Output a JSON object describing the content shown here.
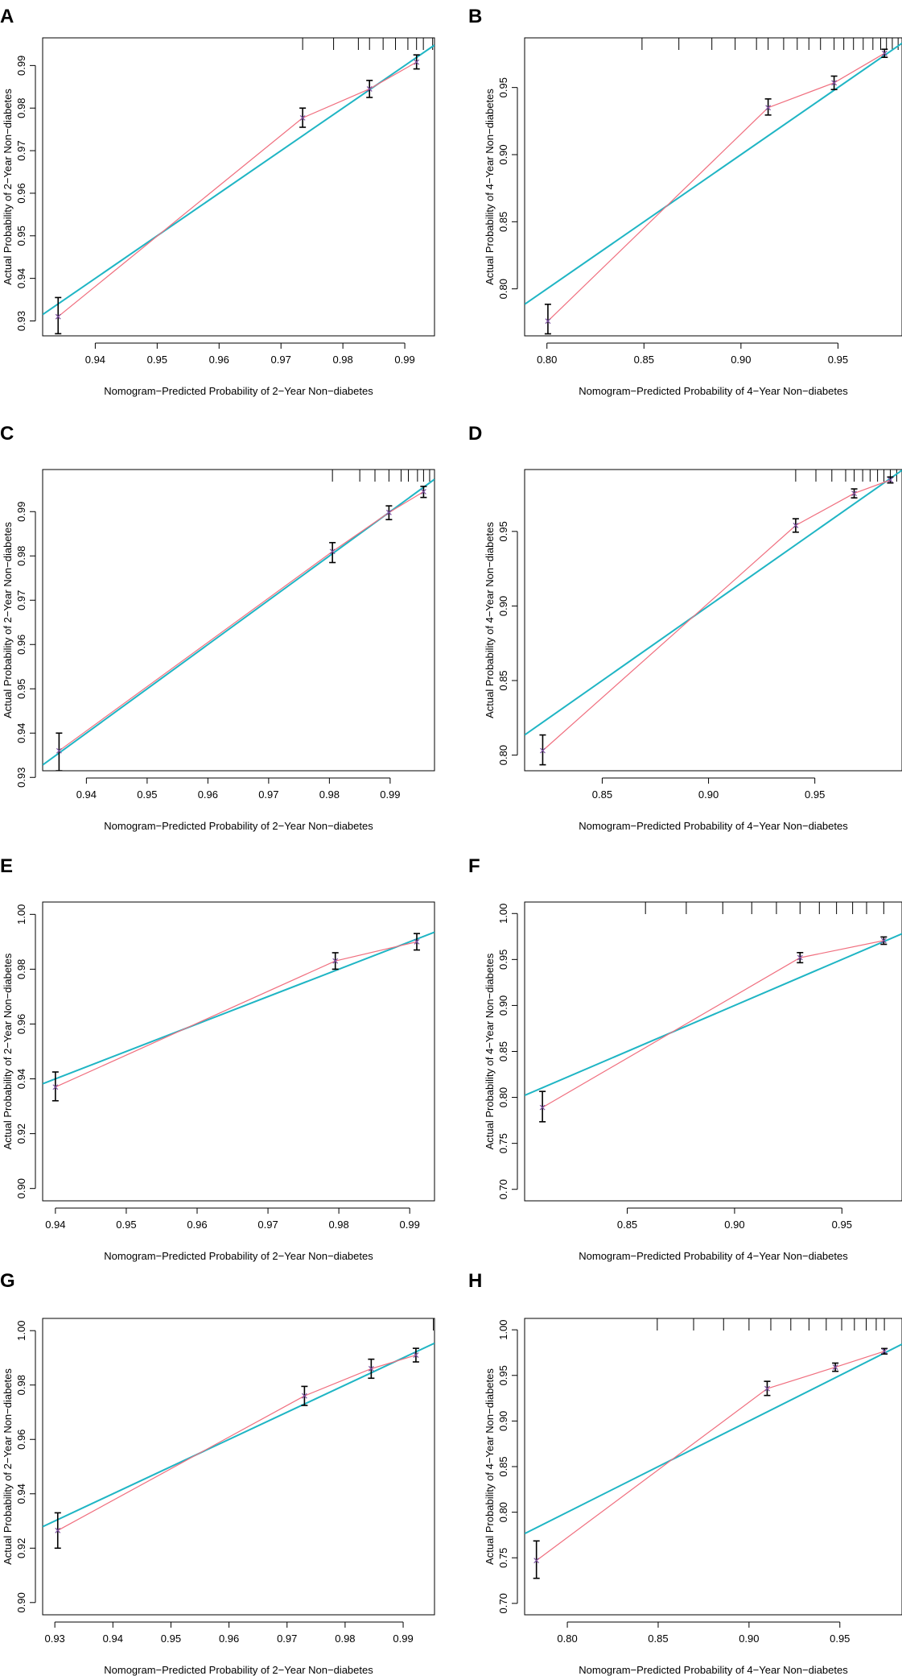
{
  "figure": {
    "colors": {
      "ideal_line": "#1fb5c4",
      "apparent_line": "#f06f7f",
      "point_marker": "#7a4fa0",
      "error_bar": "#000000",
      "axes": "#000000"
    }
  },
  "chart_data": [
    {
      "panel": "A",
      "type": "line",
      "xlabel": "Nomogram−Predicted Probability of 2−Year Non−diabetes",
      "ylabel": "Actual Probability of 2−Year Non−diabetes",
      "xlim": [
        0.9315,
        0.9948
      ],
      "ylim": [
        0.9265,
        0.9965
      ],
      "xticks": [
        0.94,
        0.95,
        0.96,
        0.97,
        0.98,
        0.99
      ],
      "xtick_labels": [
        "0.94",
        "0.95",
        "0.96",
        "0.97",
        "0.98",
        "0.99"
      ],
      "yticks": [
        0.93,
        0.94,
        0.95,
        0.96,
        0.97,
        0.98,
        0.99
      ],
      "ytick_labels": [
        "0.93",
        "0.94",
        "0.95",
        "0.96",
        "0.97",
        "0.98",
        "0.99"
      ],
      "ideal_line": [
        [
          0.9315,
          0.9315
        ],
        [
          0.9948,
          0.9948
        ]
      ],
      "points": [
        {
          "x": 0.934,
          "y": 0.931,
          "lo": 0.927,
          "hi": 0.9355
        },
        {
          "x": 0.9735,
          "y": 0.9777,
          "lo": 0.9755,
          "hi": 0.98
        },
        {
          "x": 0.9843,
          "y": 0.9845,
          "lo": 0.9825,
          "hi": 0.9865
        },
        {
          "x": 0.9919,
          "y": 0.9908,
          "lo": 0.9892,
          "hi": 0.9925
        }
      ],
      "rug": [
        0.9735,
        0.9785,
        0.9825,
        0.9843,
        0.9865,
        0.9885,
        0.9905,
        0.9919,
        0.993,
        0.9945
      ]
    },
    {
      "panel": "B",
      "type": "line",
      "xlabel": "Nomogram−Predicted Probability of 4−Year Non−diabetes",
      "ylabel": "Actual Probability of 4−Year Non−diabetes",
      "xlim": [
        0.7885,
        0.983
      ],
      "ylim": [
        0.765,
        0.987
      ],
      "xticks": [
        0.8,
        0.85,
        0.9,
        0.95
      ],
      "xtick_labels": [
        "0.80",
        "0.85",
        "0.90",
        "0.95"
      ],
      "yticks": [
        0.8,
        0.85,
        0.9,
        0.95
      ],
      "ytick_labels": [
        "0.80",
        "0.85",
        "0.90",
        "0.95"
      ],
      "ideal_line": [
        [
          0.7885,
          0.7885
        ],
        [
          0.983,
          0.983
        ]
      ],
      "points": [
        {
          "x": 0.8005,
          "y": 0.776,
          "lo": 0.7665,
          "hi": 0.7885
        },
        {
          "x": 0.914,
          "y": 0.935,
          "lo": 0.9295,
          "hi": 0.9415
        },
        {
          "x": 0.948,
          "y": 0.9535,
          "lo": 0.9485,
          "hi": 0.9585
        },
        {
          "x": 0.974,
          "y": 0.9755,
          "lo": 0.9725,
          "hi": 0.9785
        }
      ],
      "rug": [
        0.849,
        0.868,
        0.885,
        0.897,
        0.908,
        0.914,
        0.922,
        0.929,
        0.935,
        0.941,
        0.948,
        0.953,
        0.958,
        0.963,
        0.968,
        0.972,
        0.975,
        0.978,
        0.981
      ]
    },
    {
      "panel": "C",
      "type": "line",
      "xlabel": "Nomogram−Predicted Probability of 2−Year Non−diabetes",
      "ylabel": "Actual Probability of 2−Year Non−diabetes",
      "xlim": [
        0.9328,
        0.9973
      ],
      "ylim": [
        0.9315,
        0.9995
      ],
      "xticks": [
        0.94,
        0.95,
        0.96,
        0.97,
        0.98,
        0.99
      ],
      "xtick_labels": [
        "0.94",
        "0.95",
        "0.96",
        "0.97",
        "0.98",
        "0.99"
      ],
      "yticks": [
        0.93,
        0.94,
        0.95,
        0.96,
        0.97,
        0.98,
        0.99
      ],
      "ytick_labels": [
        "0.93",
        "0.94",
        "0.95",
        "0.96",
        "0.97",
        "0.98",
        "0.99"
      ],
      "ideal_line": [
        [
          0.9328,
          0.9328
        ],
        [
          0.9973,
          0.9973
        ]
      ],
      "points": [
        {
          "x": 0.9355,
          "y": 0.936,
          "lo": 0.9315,
          "hi": 0.94
        },
        {
          "x": 0.9805,
          "y": 0.981,
          "lo": 0.9785,
          "hi": 0.983
        },
        {
          "x": 0.9898,
          "y": 0.9898,
          "lo": 0.9882,
          "hi": 0.9913
        },
        {
          "x": 0.9955,
          "y": 0.9945,
          "lo": 0.9932,
          "hi": 0.9957
        }
      ],
      "rug": [
        0.9805,
        0.985,
        0.9875,
        0.9898,
        0.9918,
        0.993,
        0.9945,
        0.9955,
        0.9965
      ]
    },
    {
      "panel": "D",
      "type": "line",
      "xlabel": "Nomogram−Predicted Probability of 4−Year Non−diabetes",
      "ylabel": "Actual Probability of 4−Year Non−diabetes",
      "xlim": [
        0.8135,
        0.991
      ],
      "ylim": [
        0.7895,
        0.9915
      ],
      "xticks": [
        0.85,
        0.9,
        0.95
      ],
      "xtick_labels": [
        "0.85",
        "0.90",
        "0.95"
      ],
      "yticks": [
        0.8,
        0.85,
        0.9,
        0.95
      ],
      "ytick_labels": [
        "0.80",
        "0.85",
        "0.90",
        "0.95"
      ],
      "ideal_line": [
        [
          0.8135,
          0.8135
        ],
        [
          0.991,
          0.991
        ]
      ],
      "points": [
        {
          "x": 0.822,
          "y": 0.803,
          "lo": 0.7935,
          "hi": 0.8135
        },
        {
          "x": 0.941,
          "y": 0.954,
          "lo": 0.9495,
          "hi": 0.9585
        },
        {
          "x": 0.9685,
          "y": 0.9755,
          "lo": 0.9725,
          "hi": 0.9785
        },
        {
          "x": 0.9855,
          "y": 0.9845,
          "lo": 0.9825,
          "hi": 0.9865
        }
      ],
      "rug": [
        0.941,
        0.9505,
        0.958,
        0.9645,
        0.9685,
        0.9725,
        0.976,
        0.9795,
        0.9825,
        0.9855,
        0.9885
      ]
    },
    {
      "panel": "E",
      "type": "line",
      "xlabel": "Nomogram−Predicted Probability of 2−Year Non−diabetes",
      "ylabel": "Actual Probability of 2−Year Non−diabetes",
      "xlim": [
        0.9382,
        0.9935
      ],
      "ylim": [
        0.8955,
        1.0045
      ],
      "xticks": [
        0.94,
        0.95,
        0.96,
        0.97,
        0.98,
        0.99
      ],
      "xtick_labels": [
        "0.94",
        "0.95",
        "0.96",
        "0.97",
        "0.98",
        "0.99"
      ],
      "yticks": [
        0.9,
        0.92,
        0.94,
        0.96,
        0.98,
        1.0
      ],
      "ytick_labels": [
        "0.90",
        "0.92",
        "0.94",
        "0.96",
        "0.98",
        "1.00"
      ],
      "ideal_line": [
        [
          0.9382,
          0.9382
        ],
        [
          0.9935,
          0.9935
        ]
      ],
      "points": [
        {
          "x": 0.94,
          "y": 0.937,
          "lo": 0.932,
          "hi": 0.9425
        },
        {
          "x": 0.9795,
          "y": 0.983,
          "lo": 0.98,
          "hi": 0.986
        },
        {
          "x": 0.991,
          "y": 0.99,
          "lo": 0.987,
          "hi": 0.993
        }
      ],
      "rug": []
    },
    {
      "panel": "F",
      "type": "line",
      "xlabel": "Nomogram−Predicted Probability of 4−Year Non−diabetes",
      "ylabel": "Actual Probability of 4−Year Non−diabetes",
      "xlim": [
        0.8022,
        0.978
      ],
      "ylim": [
        0.6875,
        1.0125
      ],
      "xticks": [
        0.85,
        0.9,
        0.95
      ],
      "xtick_labels": [
        "0.85",
        "0.90",
        "0.95"
      ],
      "yticks": [
        0.7,
        0.75,
        0.8,
        0.85,
        0.9,
        0.95,
        1.0
      ],
      "ytick_labels": [
        "0.70",
        "0.75",
        "0.80",
        "0.85",
        "0.90",
        "0.95",
        "1.00"
      ],
      "ideal_line": [
        [
          0.8022,
          0.8022
        ],
        [
          0.978,
          0.978
        ]
      ],
      "points": [
        {
          "x": 0.8105,
          "y": 0.789,
          "lo": 0.7735,
          "hi": 0.8065
        },
        {
          "x": 0.9305,
          "y": 0.952,
          "lo": 0.9465,
          "hi": 0.9575
        },
        {
          "x": 0.9695,
          "y": 0.9705,
          "lo": 0.9665,
          "hi": 0.9745
        }
      ],
      "rug": [
        0.8585,
        0.8775,
        0.8945,
        0.908,
        0.9195,
        0.9305,
        0.9395,
        0.9475,
        0.955,
        0.9615,
        0.9695
      ]
    },
    {
      "panel": "G",
      "type": "line",
      "xlabel": "Nomogram−Predicted Probability of 2−Year Non−diabetes",
      "ylabel": "Actual Probability of 2−Year Non−diabetes",
      "xlim": [
        0.9279,
        0.9954
      ],
      "ylim": [
        0.8955,
        1.0045
      ],
      "xticks": [
        0.93,
        0.94,
        0.95,
        0.96,
        0.97,
        0.98,
        0.99
      ],
      "xtick_labels": [
        "0.93",
        "0.94",
        "0.95",
        "0.96",
        "0.97",
        "0.98",
        "0.99"
      ],
      "yticks": [
        0.9,
        0.92,
        0.94,
        0.96,
        0.98,
        1.0
      ],
      "ytick_labels": [
        "0.90",
        "0.92",
        "0.94",
        "0.96",
        "0.98",
        "1.00"
      ],
      "ideal_line": [
        [
          0.9279,
          0.9279
        ],
        [
          0.9954,
          0.9954
        ]
      ],
      "points": [
        {
          "x": 0.9305,
          "y": 0.9265,
          "lo": 0.92,
          "hi": 0.933
        },
        {
          "x": 0.973,
          "y": 0.976,
          "lo": 0.9725,
          "hi": 0.9795
        },
        {
          "x": 0.9845,
          "y": 0.986,
          "lo": 0.9825,
          "hi": 0.9895
        },
        {
          "x": 0.9922,
          "y": 0.991,
          "lo": 0.9885,
          "hi": 0.9935
        }
      ],
      "rug": [
        0.9952
      ]
    },
    {
      "panel": "H",
      "type": "line",
      "xlabel": "Nomogram−Predicted Probability of 4−Year Non−diabetes",
      "ylabel": "Actual Probability of 4−Year Non−diabetes",
      "xlim": [
        0.7765,
        0.9842
      ],
      "ylim": [
        0.6875,
        1.0125
      ],
      "xticks": [
        0.8,
        0.85,
        0.9,
        0.95
      ],
      "xtick_labels": [
        "0.80",
        "0.85",
        "0.90",
        "0.95"
      ],
      "yticks": [
        0.7,
        0.75,
        0.8,
        0.85,
        0.9,
        0.95,
        1.0
      ],
      "ytick_labels": [
        "0.70",
        "0.75",
        "0.80",
        "0.85",
        "0.90",
        "0.95",
        "1.00"
      ],
      "ideal_line": [
        [
          0.7765,
          0.7765
        ],
        [
          0.9842,
          0.9842
        ]
      ],
      "points": [
        {
          "x": 0.783,
          "y": 0.747,
          "lo": 0.7275,
          "hi": 0.7685
        },
        {
          "x": 0.91,
          "y": 0.9355,
          "lo": 0.928,
          "hi": 0.9435
        },
        {
          "x": 0.9475,
          "y": 0.959,
          "lo": 0.9545,
          "hi": 0.9635
        },
        {
          "x": 0.9745,
          "y": 0.9765,
          "lo": 0.9735,
          "hi": 0.9795
        }
      ],
      "rug": [
        0.8495,
        0.8695,
        0.886,
        0.9,
        0.912,
        0.923,
        0.933,
        0.9425,
        0.951,
        0.958,
        0.9645,
        0.97,
        0.9745
      ]
    }
  ]
}
